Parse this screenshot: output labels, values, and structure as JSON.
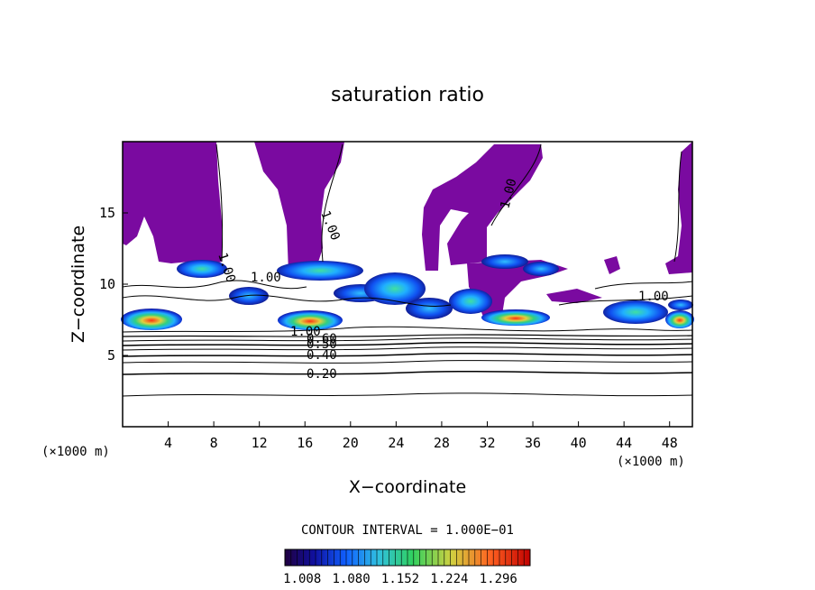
{
  "chart_data": {
    "type": "heatmap",
    "title": "saturation ratio",
    "xlabel": "X−coordinate",
    "ylabel": "Z−coordinate",
    "x_unit_left": "(×1000 m)",
    "x_unit_right": "(×1000 m)",
    "xlim": [
      0,
      50
    ],
    "ylim": [
      0,
      20
    ],
    "x_ticks": [
      "4",
      "8",
      "12",
      "16",
      "20",
      "24",
      "28",
      "32",
      "36",
      "40",
      "44",
      "48"
    ],
    "y_ticks": [
      "5",
      "10",
      "15"
    ],
    "contour_interval_text": "CONTOUR INTERVAL = 1.000E−01",
    "contour_labels": [
      "1.00",
      "1.00",
      "1.00",
      "1.00",
      "1.00",
      "1.00",
      "0.60",
      "0.50",
      "0.40",
      "0.20"
    ],
    "colorbar": {
      "tick_labels": [
        "1.008",
        "1.080",
        "1.152",
        "1.224",
        "1.296"
      ],
      "colors": [
        "#200040",
        "#1010a0",
        "#1060ff",
        "#30c0e0",
        "#30d060",
        "#d0d040",
        "#ff6020",
        "#c00000"
      ]
    },
    "saturation_fill_color": "#7a0aa0",
    "grid": false
  }
}
